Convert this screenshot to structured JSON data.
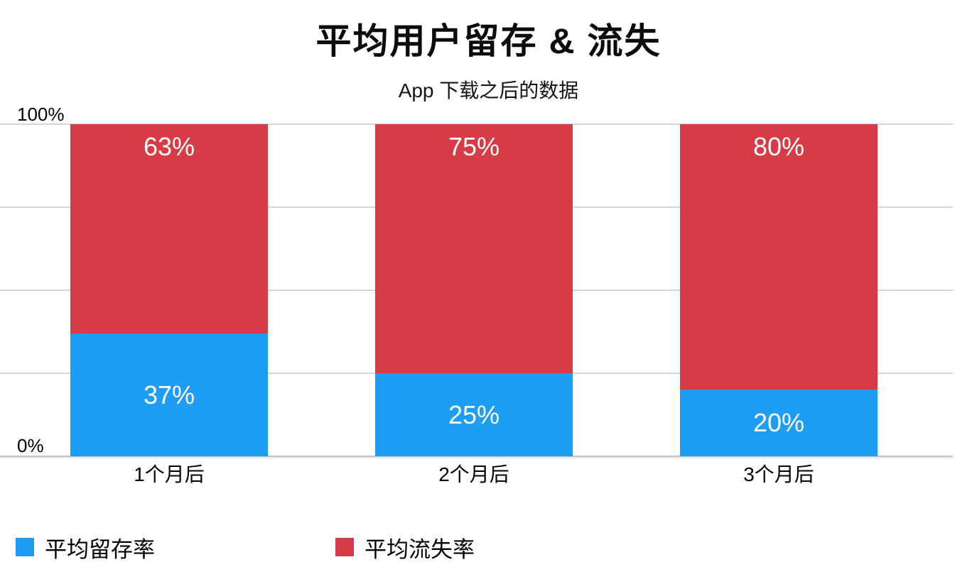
{
  "title": "平均用户留存 & 流失",
  "subtitle": "App 下载之后的数据",
  "y_axis": {
    "max_label": "100%",
    "min_label": "0%"
  },
  "colors": {
    "retention_blue": "#1e9df5",
    "churn_red": "#d53c45",
    "gridline": "#dad5d5",
    "axis_line": "#c9c4c4",
    "data_label_text": "#ffffff",
    "text": "#000000"
  },
  "chart_data": {
    "type": "bar",
    "stacked": true,
    "title": "平均用户留存 & 流失",
    "subtitle": "App 下载之后的数据",
    "categories": [
      "1个月后",
      "2个月后",
      "3个月后"
    ],
    "series": [
      {
        "name": "平均留存率",
        "color": "#1e9df5",
        "values": [
          37,
          25,
          20
        ],
        "labels": [
          "37%",
          "25%",
          "20%"
        ]
      },
      {
        "name": "平均流失率",
        "color": "#d53c45",
        "values": [
          63,
          75,
          80
        ],
        "labels": [
          "63%",
          "75%",
          "80%"
        ]
      }
    ],
    "ylim": [
      0,
      100
    ],
    "y_gridlines_percent": [
      0,
      25,
      50,
      75,
      100
    ],
    "grid": true,
    "legend_position": "bottom"
  },
  "legend": {
    "items": [
      {
        "label": "平均留存率",
        "color": "#1e9df5"
      },
      {
        "label": "平均流失率",
        "color": "#d53c45"
      }
    ]
  }
}
